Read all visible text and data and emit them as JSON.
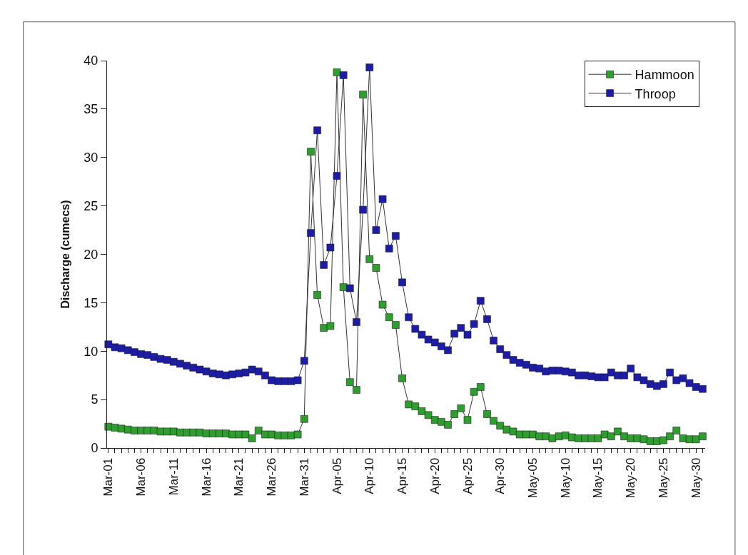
{
  "chart_data": {
    "type": "line",
    "ylabel": "Discharge (cumecs)",
    "categories": [
      "Mar-01",
      null,
      null,
      null,
      null,
      "Mar-06",
      null,
      null,
      null,
      null,
      "Mar-11",
      null,
      null,
      null,
      null,
      "Mar-16",
      null,
      null,
      null,
      null,
      "Mar-21",
      null,
      null,
      null,
      null,
      "Mar-26",
      null,
      null,
      null,
      null,
      "Mar-31",
      null,
      null,
      null,
      null,
      "Apr-05",
      null,
      null,
      null,
      null,
      "Apr-10",
      null,
      null,
      null,
      null,
      "Apr-15",
      null,
      null,
      null,
      null,
      "Apr-20",
      null,
      null,
      null,
      null,
      "Apr-25",
      null,
      null,
      null,
      null,
      "Apr-30",
      null,
      null,
      null,
      null,
      "May-05",
      null,
      null,
      null,
      null,
      "May-10",
      null,
      null,
      null,
      null,
      "May-15",
      null,
      null,
      null,
      null,
      "May-20",
      null,
      null,
      null,
      null,
      "May-25",
      null,
      null,
      null,
      null,
      "May-30",
      null
    ],
    "series": [
      {
        "name": "Hammoon",
        "color": "#2e9e2e",
        "values": [
          2.2,
          2.1,
          2.0,
          1.9,
          1.8,
          1.8,
          1.8,
          1.8,
          1.7,
          1.7,
          1.7,
          1.6,
          1.6,
          1.6,
          1.6,
          1.5,
          1.5,
          1.5,
          1.5,
          1.4,
          1.4,
          1.4,
          1.0,
          1.8,
          1.4,
          1.4,
          1.3,
          1.3,
          1.3,
          1.4,
          3.0,
          30.6,
          15.8,
          12.4,
          12.6,
          38.8,
          16.6,
          6.8,
          6.0,
          36.5,
          19.5,
          18.6,
          14.8,
          13.5,
          12.7,
          7.2,
          4.5,
          4.3,
          3.8,
          3.4,
          2.9,
          2.7,
          2.4,
          3.5,
          4.1,
          2.9,
          5.8,
          6.3,
          3.5,
          2.8,
          2.3,
          1.9,
          1.7,
          1.4,
          1.4,
          1.4,
          1.2,
          1.2,
          1.0,
          1.2,
          1.3,
          1.1,
          1.0,
          1.0,
          1.0,
          1.0,
          1.4,
          1.2,
          1.7,
          1.2,
          1.0,
          1.0,
          0.9,
          0.7,
          0.7,
          0.8,
          1.2,
          1.8,
          1.0,
          0.9,
          0.9,
          1.2
        ]
      },
      {
        "name": "Throop",
        "color": "#1c1ca8",
        "values": [
          10.7,
          10.4,
          10.3,
          10.1,
          9.9,
          9.7,
          9.6,
          9.4,
          9.2,
          9.1,
          8.9,
          8.7,
          8.5,
          8.3,
          8.1,
          7.9,
          7.7,
          7.6,
          7.5,
          7.6,
          7.7,
          7.8,
          8.1,
          7.9,
          7.5,
          7.0,
          6.9,
          6.9,
          6.9,
          7.0,
          9.0,
          22.2,
          32.8,
          18.9,
          20.7,
          28.1,
          38.5,
          16.5,
          13.0,
          24.6,
          39.3,
          22.5,
          25.7,
          20.6,
          21.9,
          17.1,
          13.5,
          12.3,
          11.7,
          11.2,
          10.9,
          10.5,
          10.1,
          11.8,
          12.4,
          11.7,
          12.8,
          15.2,
          13.3,
          11.1,
          10.2,
          9.6,
          9.1,
          8.8,
          8.6,
          8.3,
          8.2,
          7.9,
          8.0,
          8.0,
          7.9,
          7.8,
          7.5,
          7.5,
          7.4,
          7.3,
          7.3,
          7.8,
          7.5,
          7.5,
          8.2,
          7.3,
          7.0,
          6.6,
          6.4,
          6.6,
          7.8,
          7.0,
          7.2,
          6.7,
          6.3,
          6.1
        ]
      }
    ],
    "ylim": [
      0,
      40
    ],
    "yticks": [
      0,
      5,
      10,
      15,
      20,
      25,
      30,
      35,
      40
    ],
    "legend": "top right",
    "marker": "square",
    "line_style": "solid"
  }
}
